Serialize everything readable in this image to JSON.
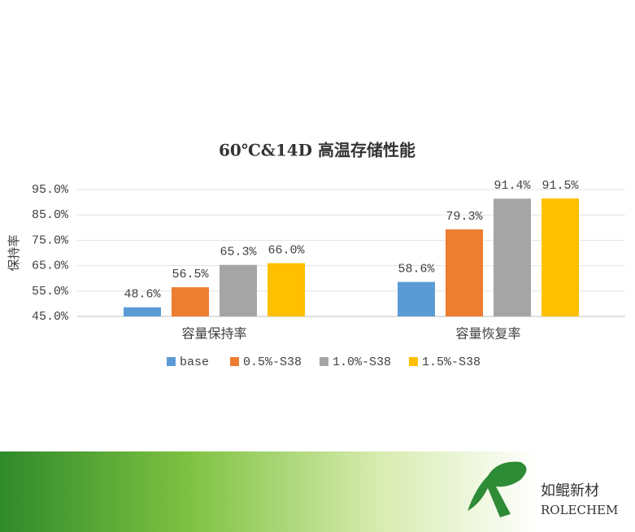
{
  "chart_data": {
    "type": "bar",
    "title": "60℃&14D 高温存储性能",
    "y_label": "保持率",
    "categories": [
      "容量保持率",
      "容量恢复率"
    ],
    "series": [
      {
        "name": "base",
        "color": "#5b9bd5",
        "values": [
          48.6,
          58.6
        ],
        "value_labels": [
          "48.6%",
          "58.6%"
        ]
      },
      {
        "name": "0.5%-S38",
        "color": "#ed7d31",
        "values": [
          56.5,
          79.3
        ],
        "value_labels": [
          "56.5%",
          "79.3%"
        ]
      },
      {
        "name": "1.0%-S38",
        "color": "#a5a5a5",
        "values": [
          65.3,
          91.4
        ],
        "value_labels": [
          "65.3%",
          "91.4%"
        ]
      },
      {
        "name": "1.5%-S38",
        "color": "#ffc000",
        "values": [
          66.0,
          91.5
        ],
        "value_labels": [
          "66.0%",
          "91.5%"
        ]
      }
    ],
    "ylim": [
      45,
      95
    ],
    "yticks": [
      {
        "value": 45,
        "label": "45.0%"
      },
      {
        "value": 55,
        "label": "55.0%"
      },
      {
        "value": 65,
        "label": "65.0%"
      },
      {
        "value": 75,
        "label": "75.0%"
      },
      {
        "value": 85,
        "label": "85.0%"
      },
      {
        "value": 95,
        "label": "95.0%"
      }
    ],
    "grid": true,
    "legend": "bottom"
  },
  "logo": {
    "name": "如鲲新材",
    "brand": "ROLECHEM"
  }
}
